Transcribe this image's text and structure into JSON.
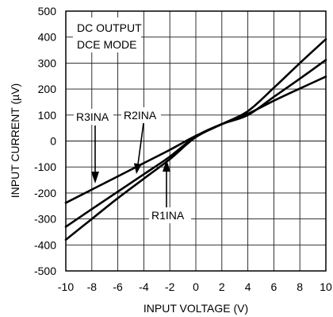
{
  "chart_data": {
    "type": "line",
    "xlabel": "INPUT VOLTAGE (V)",
    "ylabel": "INPUT CURRENT (µV)",
    "xlim": [
      -10,
      10
    ],
    "ylim": [
      -500,
      500
    ],
    "x_ticks": [
      -10,
      -8,
      -6,
      -4,
      -2,
      0,
      2,
      4,
      6,
      8,
      10
    ],
    "y_ticks": [
      500,
      400,
      300,
      200,
      100,
      0,
      -100,
      -200,
      -300,
      -400,
      -500
    ],
    "grid": true,
    "annotations": [
      "DC OUTPUT",
      "DCE MODE"
    ],
    "x": [
      -10,
      -8,
      -6,
      -4,
      -2,
      0,
      2,
      4,
      6,
      8,
      10
    ],
    "series": [
      {
        "name": "R1INA",
        "values": [
          -380,
          -300,
          -220,
          -145,
          -70,
          15,
          65,
          115,
          205,
          300,
          392
        ]
      },
      {
        "name": "R2INA",
        "values": [
          -330,
          -262,
          -195,
          -128,
          -60,
          18,
          65,
          100,
          170,
          240,
          312
        ]
      },
      {
        "name": "R3INA",
        "values": [
          -238,
          -187,
          -136,
          -85,
          -34,
          20,
          65,
          105,
          155,
          202,
          248
        ]
      }
    ],
    "colors": {
      "line": "#000000",
      "grid": "#1a1a1a",
      "background": "#ffffff"
    }
  }
}
